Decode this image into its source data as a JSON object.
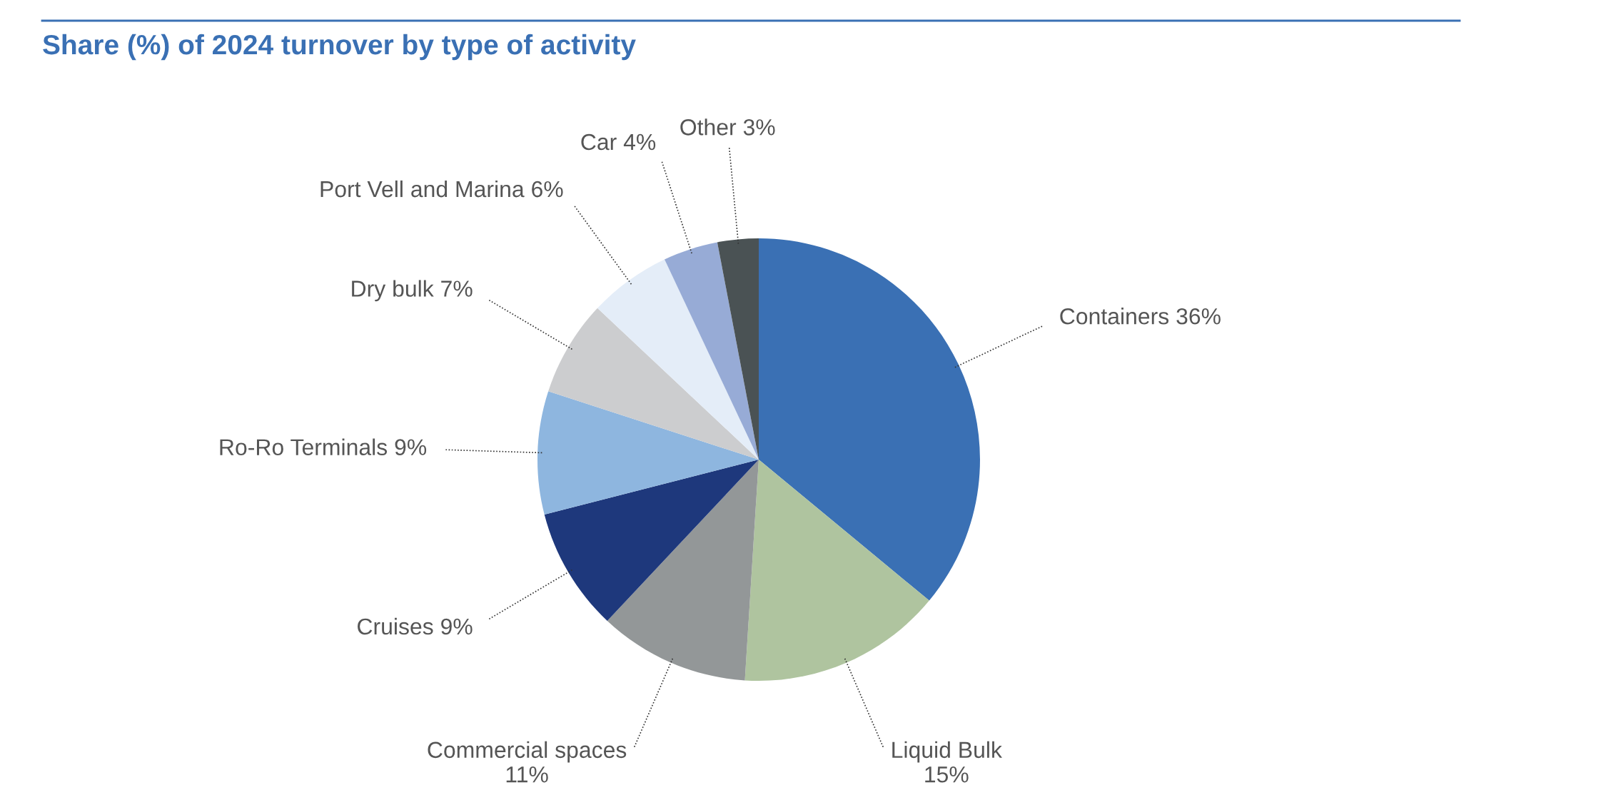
{
  "chart_data": {
    "type": "pie",
    "title": "Share (%) of 2024 turnover by type of activity",
    "categories": [
      "Containers",
      "Liquid Bulk",
      "Commercial spaces",
      "Cruises",
      "Ro-Ro Terminals",
      "Dry bulk",
      "Port Vell and Marina",
      "Car",
      "Other"
    ],
    "values": [
      36,
      15,
      11,
      9,
      9,
      7,
      6,
      4,
      3
    ],
    "value_labels": [
      "36%",
      "15%",
      "11%",
      "9%",
      "9%",
      "7%",
      "6%",
      "4%",
      "3%"
    ],
    "colors": [
      "#3a70b4",
      "#afc49f",
      "#939798",
      "#1e387c",
      "#8eb6df",
      "#cccdcf",
      "#e4edf8",
      "#97abd6",
      "#4a5254"
    ]
  }
}
